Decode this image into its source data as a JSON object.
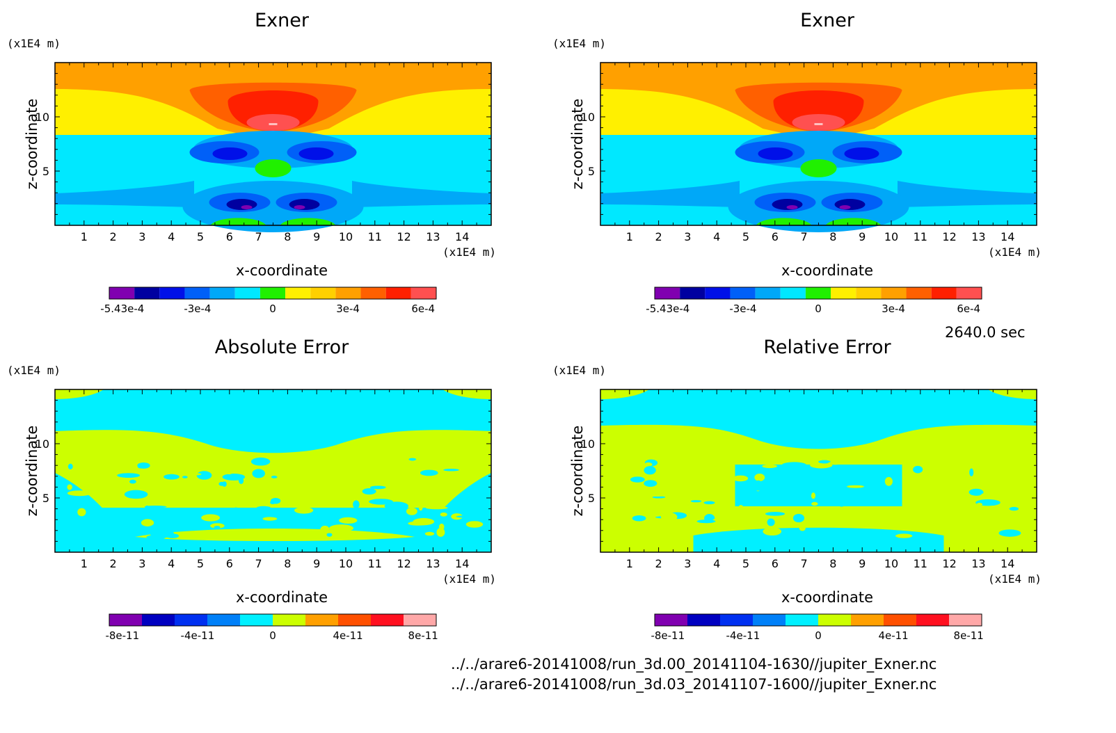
{
  "run_time": "2640.0 sec",
  "files": [
    "../../arare6-20141008/run_3d.00_20141104-1630//jupiter_Exner.nc",
    "../../arare6-20141008/run_3d.03_20141107-1600//jupiter_Exner.nc"
  ],
  "chart_data": [
    {
      "type": "heatmap",
      "title": "Exner",
      "xlabel": "x-coordinate",
      "ylabel": "z-coordinate",
      "xunit": "(x1E4 m)",
      "yunit": "(x1E4 m)",
      "xlim": [
        0,
        15
      ],
      "ylim": [
        0,
        15
      ],
      "xticks": [
        "1",
        "2",
        "3",
        "4",
        "5",
        "6",
        "7",
        "8",
        "9",
        "10",
        "11",
        "12",
        "13",
        "14"
      ],
      "yticks": [
        "5",
        "10"
      ],
      "colorbar": {
        "colors": [
          "#8000b0",
          "#0000a0",
          "#0010e8",
          "#0060f8",
          "#00a8f8",
          "#00e8ff",
          "#20f000",
          "#fff000",
          "#ffd000",
          "#ffa000",
          "#ff6000",
          "#ff2000",
          "#ff5050"
        ],
        "ticks": [
          "-5.43e-4",
          "-3e-4",
          "0",
          "3e-4",
          "6e-4"
        ]
      }
    },
    {
      "type": "heatmap",
      "title": "Exner",
      "xlabel": "x-coordinate",
      "ylabel": "z-coordinate",
      "xunit": "(x1E4 m)",
      "yunit": "(x1E4 m)",
      "xlim": [
        0,
        15
      ],
      "ylim": [
        0,
        15
      ],
      "xticks": [
        "1",
        "2",
        "3",
        "4",
        "5",
        "6",
        "7",
        "8",
        "9",
        "10",
        "11",
        "12",
        "13",
        "14"
      ],
      "yticks": [
        "5",
        "10"
      ],
      "colorbar": {
        "colors": [
          "#8000b0",
          "#0000a0",
          "#0010e8",
          "#0060f8",
          "#00a8f8",
          "#00e8ff",
          "#20f000",
          "#fff000",
          "#ffd000",
          "#ffa000",
          "#ff6000",
          "#ff2000",
          "#ff5050"
        ],
        "ticks": [
          "-5.43e-4",
          "-3e-4",
          "0",
          "3e-4",
          "6e-4"
        ]
      }
    },
    {
      "type": "heatmap",
      "title": "Absolute Error",
      "xlabel": "x-coordinate",
      "ylabel": "z-coordinate",
      "xunit": "(x1E4 m)",
      "yunit": "(x1E4 m)",
      "xlim": [
        0,
        15
      ],
      "ylim": [
        0,
        15
      ],
      "xticks": [
        "1",
        "2",
        "3",
        "4",
        "5",
        "6",
        "7",
        "8",
        "9",
        "10",
        "11",
        "12",
        "13",
        "14"
      ],
      "yticks": [
        "5",
        "10"
      ],
      "colorbar": {
        "colors": [
          "#8000b0",
          "#0000c0",
          "#0030f0",
          "#0080f8",
          "#00f0ff",
          "#ccff00",
          "#ffa000",
          "#ff5000",
          "#ff1020",
          "#ffa8a8"
        ],
        "ticks": [
          "-8e-11",
          "-4e-11",
          "0",
          "4e-11",
          "8e-11"
        ]
      }
    },
    {
      "type": "heatmap",
      "title": "Relative Error",
      "xlabel": "x-coordinate",
      "ylabel": "z-coordinate",
      "xunit": "(x1E4 m)",
      "yunit": "(x1E4 m)",
      "xlim": [
        0,
        15
      ],
      "ylim": [
        0,
        15
      ],
      "xticks": [
        "1",
        "2",
        "3",
        "4",
        "5",
        "6",
        "7",
        "8",
        "9",
        "10",
        "11",
        "12",
        "13",
        "14"
      ],
      "yticks": [
        "5",
        "10"
      ],
      "colorbar": {
        "colors": [
          "#8000b0",
          "#0000c0",
          "#0030f0",
          "#0080f8",
          "#00f0ff",
          "#ccff00",
          "#ffa000",
          "#ff5000",
          "#ff1020",
          "#ffa8a8"
        ],
        "ticks": [
          "-8e-11",
          "-4e-11",
          "0",
          "4e-11",
          "8e-11"
        ]
      }
    }
  ]
}
